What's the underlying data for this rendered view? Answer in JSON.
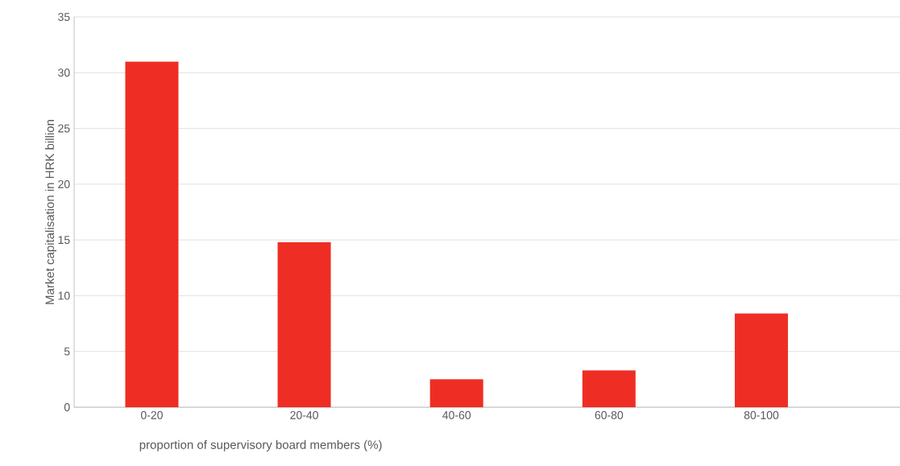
{
  "chart_data": {
    "type": "bar",
    "xlabel": "proportion of supervisory board members (%)",
    "ylabel": "Market capitalisation in HRK billion",
    "categories": [
      "0-20",
      "20-40",
      "40-60",
      "60-80",
      "80-100"
    ],
    "values": [
      31.0,
      14.8,
      2.5,
      3.3,
      8.4
    ],
    "color": "#ee2e24",
    "ylim": [
      0,
      35
    ],
    "yticks": [
      0,
      5,
      10,
      15,
      20,
      25,
      30,
      35
    ],
    "grid": "y"
  }
}
